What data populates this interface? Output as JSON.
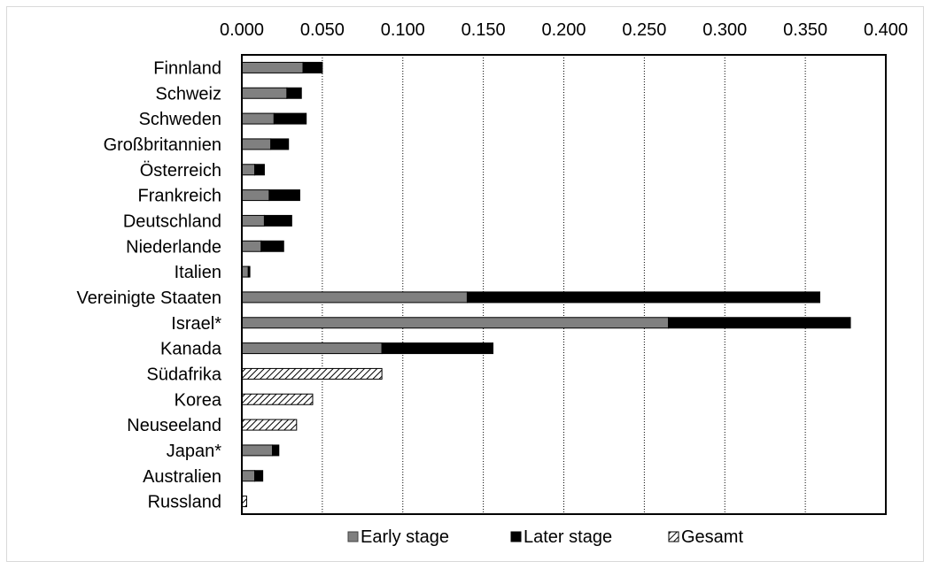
{
  "chart_data": {
    "type": "bar",
    "orientation": "horizontal",
    "stacked": true,
    "categories": [
      "Finnland",
      "Schweiz",
      "Schweden",
      "Großbritannien",
      "Österreich",
      "Frankreich",
      "Deutschland",
      "Niederlande",
      "Italien",
      "Vereinigte Staaten",
      "Israel*",
      "Kanada",
      "Südafrika",
      "Korea",
      "Neuseeland",
      "Japan*",
      "Australien",
      "Russland"
    ],
    "series": [
      {
        "name": "Early stage",
        "color": "#808080",
        "pattern": "solid",
        "values": [
          0.038,
          0.028,
          0.02,
          0.018,
          0.008,
          0.017,
          0.014,
          0.012,
          0.004,
          0.14,
          0.265,
          0.087,
          null,
          null,
          null,
          0.019,
          0.008,
          null
        ]
      },
      {
        "name": "Later stage",
        "color": "#000000",
        "pattern": "solid",
        "values": [
          0.012,
          0.009,
          0.02,
          0.011,
          0.006,
          0.019,
          0.017,
          0.014,
          0.001,
          0.219,
          0.113,
          0.069,
          null,
          null,
          null,
          0.004,
          0.005,
          null
        ]
      },
      {
        "name": "Gesamt",
        "color": "#000000",
        "pattern": "hatched",
        "values": [
          null,
          null,
          null,
          null,
          null,
          null,
          null,
          null,
          null,
          null,
          null,
          null,
          0.087,
          0.044,
          0.034,
          null,
          null,
          0.003
        ]
      }
    ],
    "x_ticks": [
      "0.000",
      "0.050",
      "0.100",
      "0.150",
      "0.200",
      "0.250",
      "0.300",
      "0.350",
      "0.400"
    ],
    "xlim": [
      0,
      0.4
    ],
    "x_axis_position": "top",
    "grid": "vertical-dotted",
    "legend_position": "bottom",
    "title": "",
    "xlabel": "",
    "ylabel": ""
  }
}
